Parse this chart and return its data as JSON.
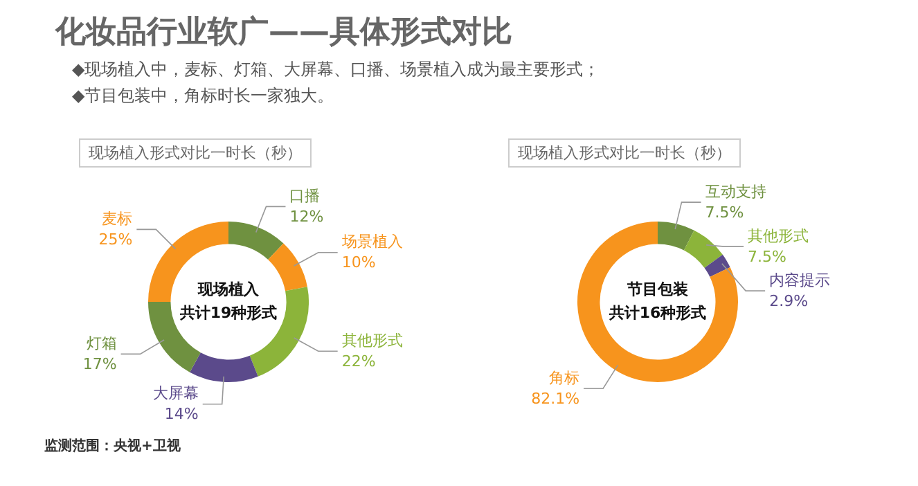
{
  "chart_data": [
    {
      "type": "other",
      "title": "化妆品行业软广——具体形式对比",
      "annotations": [
        "◆现场植入中，麦标、灯箱、大屏幕、口播、场景植入成为最主要形式；",
        "◆节目包装中，角标时长一家独大。"
      ]
    },
    {
      "type": "donut",
      "title": "现场植入形式对比一时长（秒）",
      "categories": [
        "口播",
        "场景植入",
        "其他形式",
        "大屏幕",
        "灯箱",
        "麦标"
      ],
      "values": [
        12,
        10,
        22,
        14,
        17,
        25
      ],
      "value_labels": [
        "12%",
        "10%",
        "22%",
        "14%",
        "17%",
        "25%"
      ],
      "colors": [
        "#6f9140",
        "#f7941d",
        "#8cb43a",
        "#5b4a8b",
        "#6f9140",
        "#f7941d"
      ],
      "annotations": [
        "现场植入",
        "共计19种形式",
        "监测范围：央视+卫视"
      ],
      "legend": false
    },
    {
      "type": "donut",
      "title": "现场植入形式对比一时长（秒）",
      "categories": [
        "互动支持",
        "其他形式",
        "内容提示",
        "角标"
      ],
      "values": [
        7.5,
        7.5,
        2.9,
        82.1
      ],
      "value_labels": [
        "7.5%",
        "7.5%",
        "2.9%",
        "82.1%"
      ],
      "colors": [
        "#6f9140",
        "#8cb43a",
        "#5b4a8b",
        "#f7941d"
      ],
      "annotations": [
        "节目包装",
        "共计16种形式"
      ],
      "legend": false
    }
  ]
}
